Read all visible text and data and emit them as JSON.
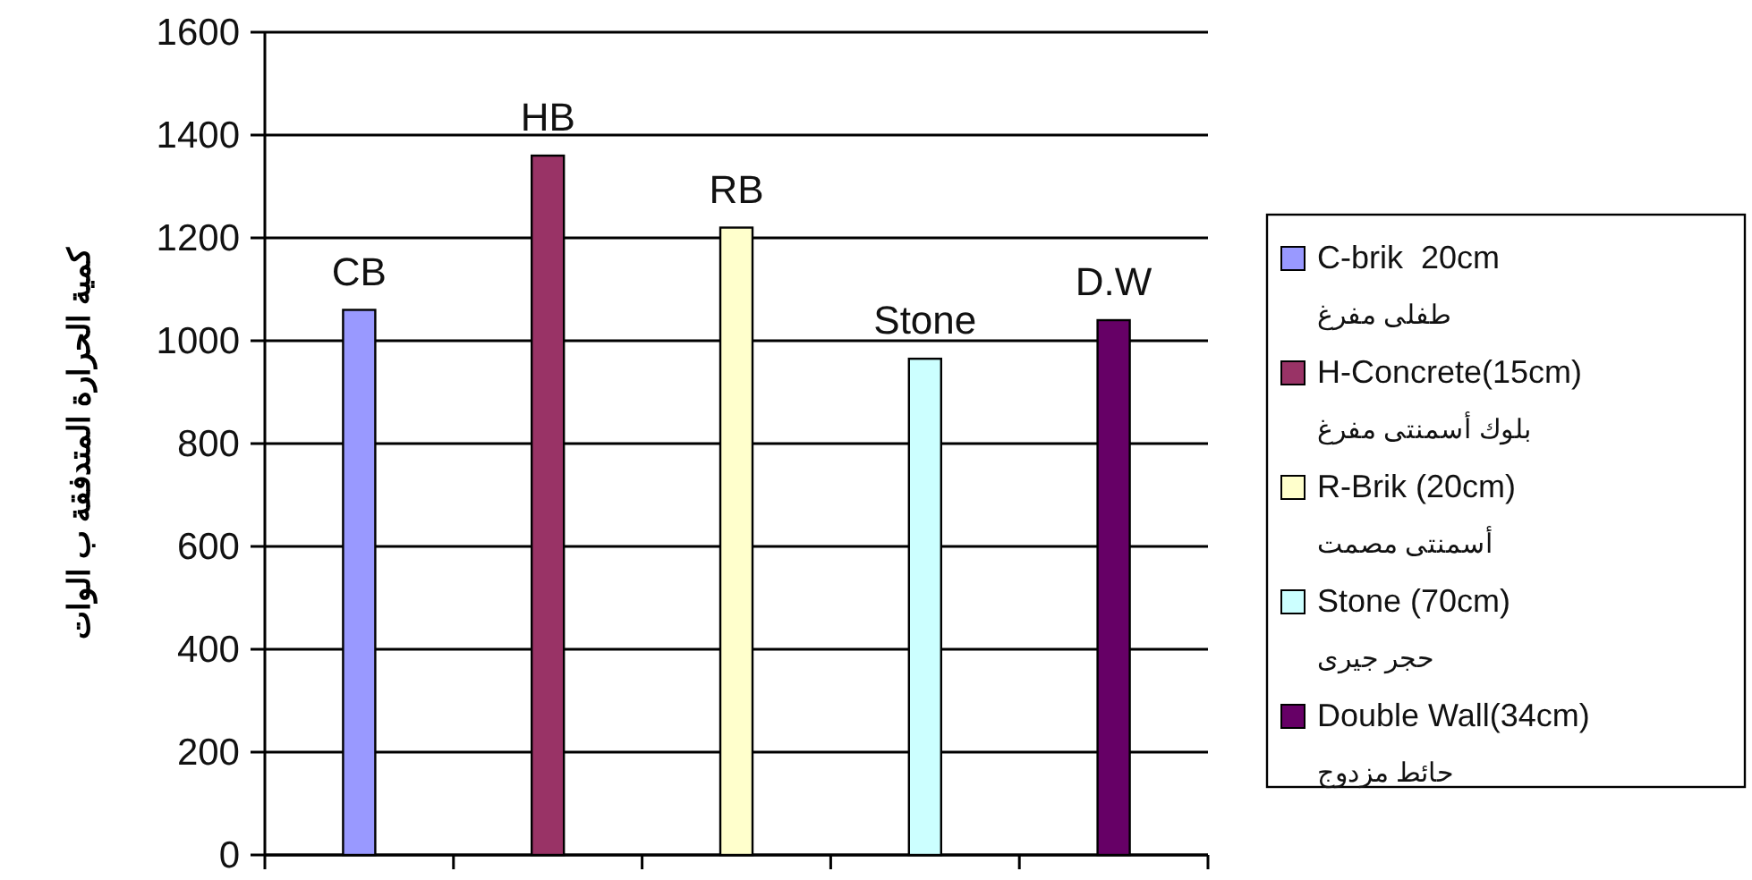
{
  "chart_data": {
    "type": "bar",
    "ylabel": "كمية الحرارة المتدفقة ب الوات",
    "categories": [
      null,
      null,
      null,
      null,
      null
    ],
    "series": [
      {
        "name": "C-brik  20cm\nطفلى مفرغ",
        "color": "#9999ff",
        "values": [
          1060,
          null,
          null,
          null,
          null
        ]
      },
      {
        "name": "H-Concrete(15cm)\nبلوك أسمنتى مفرغ",
        "color": "#993366",
        "values": [
          null,
          1360,
          null,
          null,
          null
        ]
      },
      {
        "name": "R-Brik (20cm)\nأسمنتى مصمت",
        "color": "#ffffcc",
        "values": [
          null,
          null,
          1220,
          null,
          null
        ]
      },
      {
        "name": "Stone (70cm)\nحجر جيرى",
        "color": "#ccffff",
        "values": [
          null,
          null,
          null,
          965,
          null
        ]
      },
      {
        "name": "Double Wall(34cm)\nحائط مزدوج",
        "color": "#660066",
        "values": [
          null,
          null,
          null,
          null,
          1040
        ]
      }
    ],
    "annotations": [
      {
        "text": "CB",
        "y": 1060
      },
      {
        "text": "HB",
        "y": 1360
      },
      {
        "text": "RB",
        "y": 1220
      },
      {
        "text": "Stone",
        "y": 965
      },
      {
        "text": "D.W",
        "y": 1040
      }
    ],
    "ylim": [
      0,
      1600
    ],
    "yticks": [
      0,
      200,
      400,
      600,
      800,
      1000,
      1200,
      1400,
      1600
    ],
    "grid": "y",
    "legend": "right"
  }
}
